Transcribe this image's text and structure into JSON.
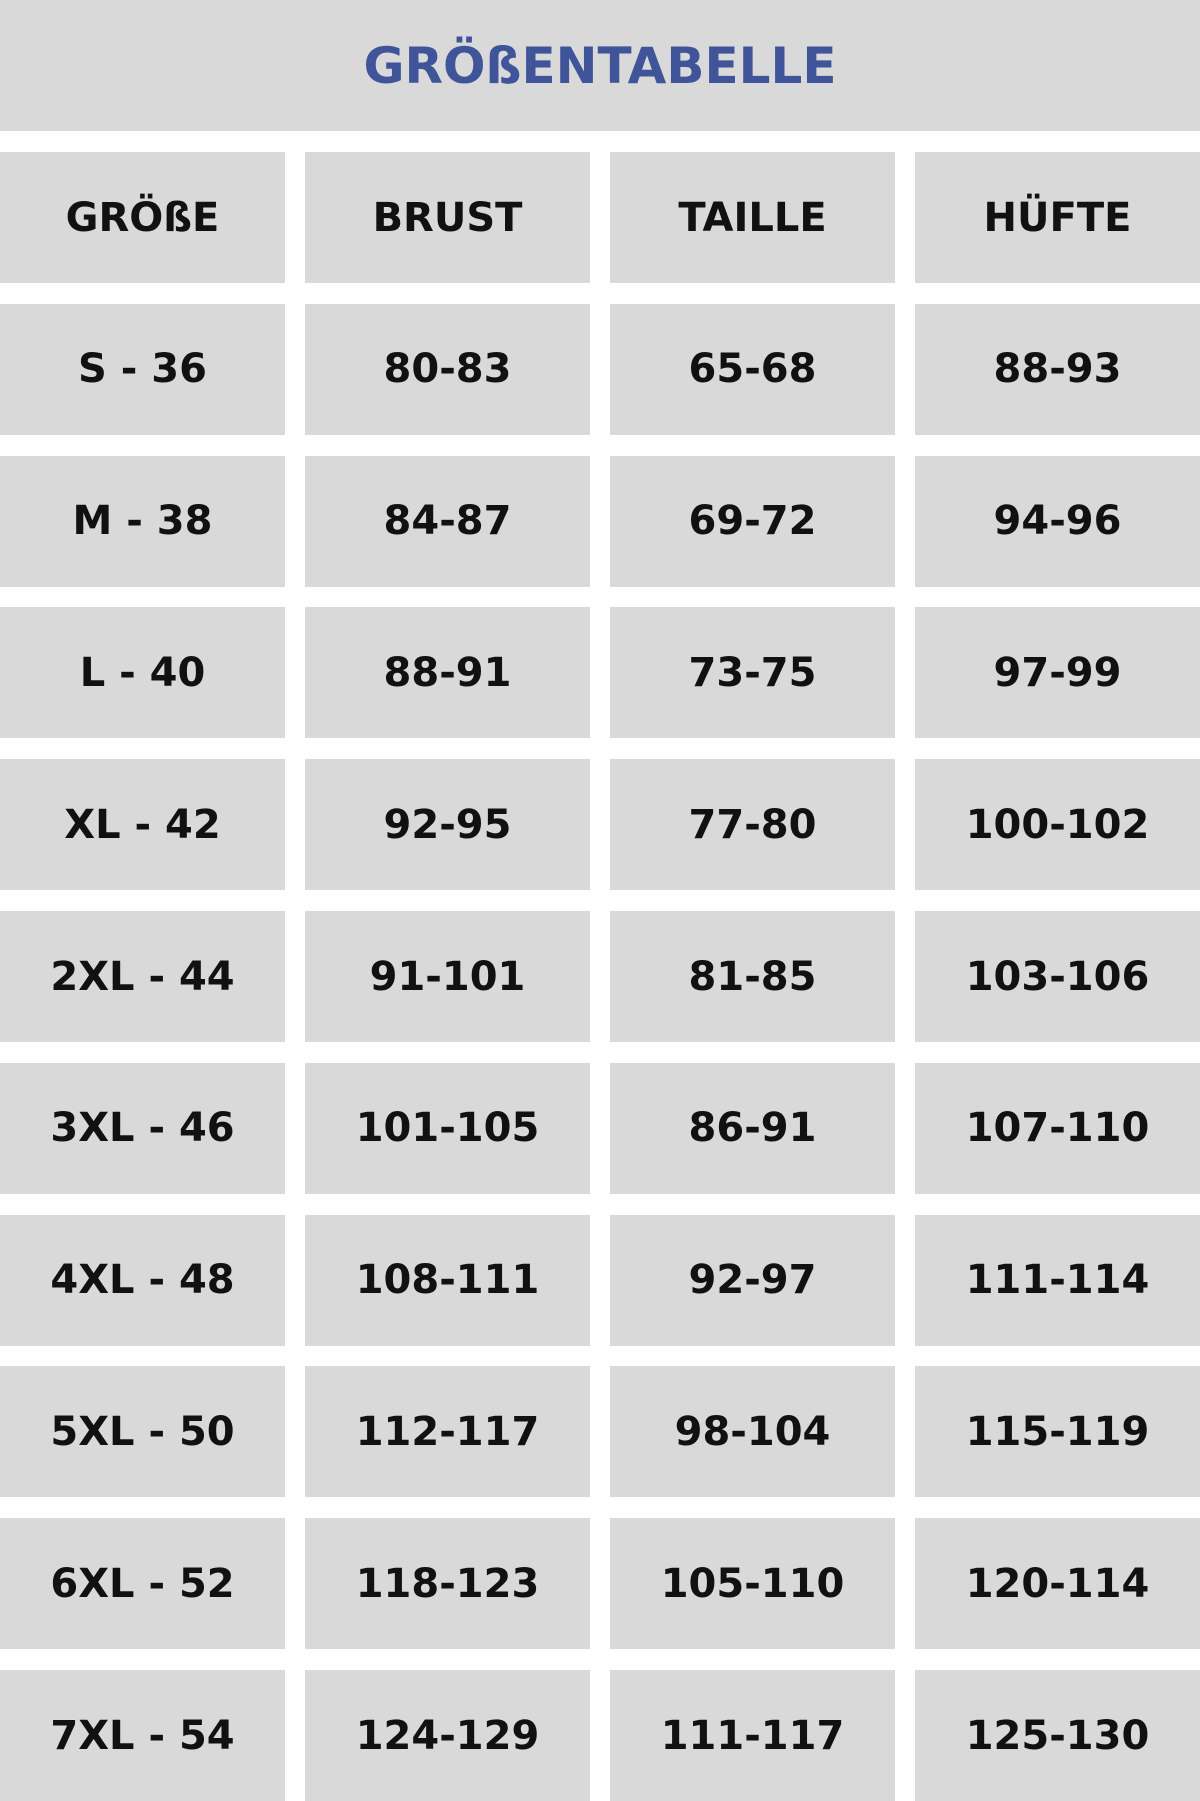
{
  "title": "GRÖßENTABELLE",
  "colors": {
    "title": "#3f5499",
    "cell_background": "#d9d9d9",
    "text": "#111111"
  },
  "table": {
    "headers": [
      "GRÖßE",
      "BRUST",
      "TAILLE",
      "HÜFTE"
    ],
    "rows": [
      [
        "S - 36",
        "80-83",
        "65-68",
        "88-93"
      ],
      [
        "M - 38",
        "84-87",
        "69-72",
        "94-96"
      ],
      [
        "L - 40",
        "88-91",
        "73-75",
        "97-99"
      ],
      [
        "XL - 42",
        "92-95",
        "77-80",
        "100-102"
      ],
      [
        "2XL - 44",
        "91-101",
        "81-85",
        "103-106"
      ],
      [
        "3XL - 46",
        "101-105",
        "86-91",
        "107-110"
      ],
      [
        "4XL - 48",
        "108-111",
        "92-97",
        "111-114"
      ],
      [
        "5XL - 50",
        "112-117",
        "98-104",
        "115-119"
      ],
      [
        "6XL - 52",
        "118-123",
        "105-110",
        "120-114"
      ],
      [
        "7XL - 54",
        "124-129",
        "111-117",
        "125-130"
      ]
    ]
  }
}
